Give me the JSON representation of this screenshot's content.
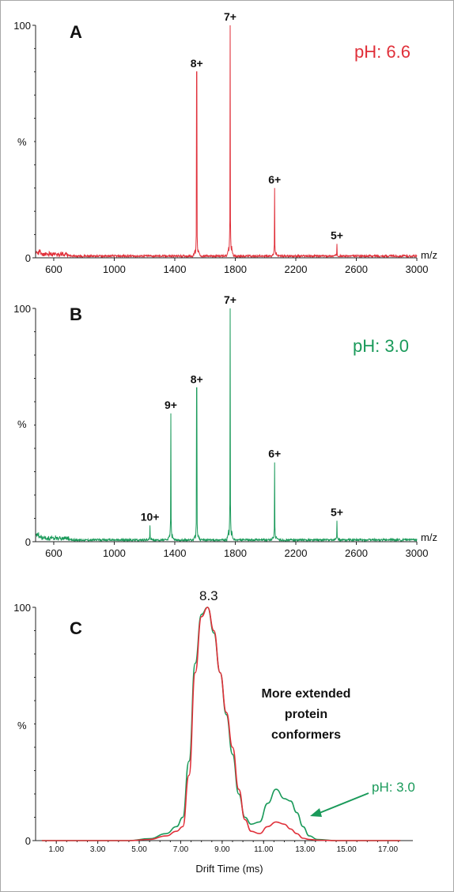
{
  "chart_data": [
    {
      "panel": "A",
      "type": "line",
      "condition_label": "pH: 6.6",
      "color": "#e0303a",
      "xlabel": "m/z",
      "ylabel": "%",
      "xlim": [
        480,
        3000
      ],
      "ylim": [
        0,
        100
      ],
      "x_ticks": [
        "600",
        "1000",
        "1400",
        "1800",
        "2200",
        "2600",
        "3000"
      ],
      "y_ticks": [
        "0",
        "100"
      ],
      "peaks": [
        {
          "label": "8+",
          "x": 1545,
          "y": 80
        },
        {
          "label": "7+",
          "x": 1766,
          "y": 100
        },
        {
          "label": "6+",
          "x": 2060,
          "y": 30
        },
        {
          "label": "5+",
          "x": 2472,
          "y": 6
        }
      ]
    },
    {
      "panel": "B",
      "type": "line",
      "condition_label": "pH: 3.0",
      "color": "#1a9a5a",
      "xlabel": "m/z",
      "ylabel": "%",
      "xlim": [
        480,
        3000
      ],
      "ylim": [
        0,
        100
      ],
      "x_ticks": [
        "600",
        "1000",
        "1400",
        "1800",
        "2200",
        "2600",
        "3000"
      ],
      "y_ticks": [
        "0",
        "100"
      ],
      "peaks": [
        {
          "label": "10+",
          "x": 1236,
          "y": 7
        },
        {
          "label": "9+",
          "x": 1374,
          "y": 55
        },
        {
          "label": "8+",
          "x": 1545,
          "y": 66
        },
        {
          "label": "7+",
          "x": 1766,
          "y": 100
        },
        {
          "label": "6+",
          "x": 2060,
          "y": 34
        },
        {
          "label": "5+",
          "x": 2472,
          "y": 9
        }
      ]
    },
    {
      "panel": "C",
      "type": "line",
      "xlabel": "Drift Time (ms)",
      "ylabel": "%",
      "xlim": [
        0,
        18.2
      ],
      "ylim": [
        0,
        100
      ],
      "x_ticks": [
        "1.00",
        "3.00",
        "5.00",
        "7.00",
        "9.00",
        "11.00",
        "13.00",
        "15.00",
        "17.00"
      ],
      "y_ticks": [
        "0",
        "100"
      ],
      "apex_label": "8.3",
      "annotation": [
        "More extended",
        "protein",
        "conformers"
      ],
      "arrow_label": "pH: 3.0",
      "series": [
        {
          "color": "#e0303a",
          "x": [
            0.3,
            4.5,
            5.5,
            6.3,
            6.8,
            7.1,
            7.4,
            7.7,
            8.0,
            8.3,
            8.6,
            8.9,
            9.2,
            9.5,
            9.8,
            10.1,
            10.4,
            10.8,
            11.2,
            11.6,
            12.0,
            12.3,
            12.6,
            12.9,
            13.2,
            13.6,
            14.5,
            17.6
          ],
          "y": [
            0,
            0,
            0.5,
            2,
            4,
            6,
            28,
            72,
            96,
            100,
            90,
            72,
            55,
            40,
            22,
            9,
            4,
            3,
            6,
            8,
            7,
            5,
            3,
            1,
            0.5,
            0.2,
            0,
            0
          ]
        },
        {
          "color": "#1a9a5a",
          "x": [
            0.3,
            4.5,
            5.5,
            6.3,
            6.8,
            7.1,
            7.4,
            7.7,
            8.0,
            8.3,
            8.6,
            8.9,
            9.2,
            9.5,
            9.8,
            10.1,
            10.4,
            10.8,
            11.2,
            11.6,
            12.0,
            12.3,
            12.6,
            12.9,
            13.2,
            13.6,
            14.5,
            17.6
          ],
          "y": [
            0,
            0,
            0.8,
            3,
            6,
            10,
            34,
            76,
            97,
            100,
            89,
            72,
            54,
            37,
            20,
            10,
            7,
            8,
            16,
            22,
            18,
            17,
            12,
            6,
            2,
            0.5,
            0,
            0
          ]
        }
      ]
    }
  ]
}
